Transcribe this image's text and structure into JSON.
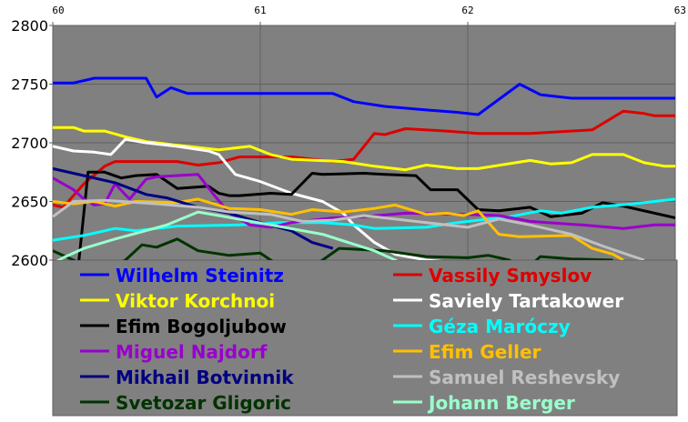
{
  "chart_data": {
    "type": "line",
    "title": "",
    "xlabel": "",
    "ylabel": "",
    "xlim": [
      60,
      63
    ],
    "ylim": [
      2600,
      2800
    ],
    "x_ticks": [
      "60",
      "61",
      "62",
      "63"
    ],
    "y_ticks": [
      "2800",
      "2750",
      "2700",
      "2650",
      "2600"
    ],
    "grid": true,
    "background": "#808080",
    "legend_placement": "bottom",
    "series": [
      {
        "name": "Wilhelm Steinitz",
        "color": "#0000ff",
        "points": [
          [
            60,
            2751
          ],
          [
            60.1,
            2751
          ],
          [
            60.2,
            2755
          ],
          [
            60.45,
            2755
          ],
          [
            60.5,
            2739
          ],
          [
            60.57,
            2747
          ],
          [
            60.65,
            2742
          ],
          [
            61.35,
            2742
          ],
          [
            61.45,
            2735
          ],
          [
            61.6,
            2731
          ],
          [
            61.8,
            2728
          ],
          [
            61.95,
            2726
          ],
          [
            62.05,
            2724
          ],
          [
            62.25,
            2750
          ],
          [
            62.35,
            2741
          ],
          [
            62.5,
            2738
          ],
          [
            63,
            2738
          ]
        ]
      },
      {
        "name": "Vassily Smyslov",
        "color": "#dd0000",
        "points": [
          [
            60,
            2647
          ],
          [
            60.05,
            2645
          ],
          [
            60.15,
            2665
          ],
          [
            60.25,
            2680
          ],
          [
            60.3,
            2684
          ],
          [
            60.6,
            2684
          ],
          [
            60.7,
            2681
          ],
          [
            60.8,
            2683
          ],
          [
            60.9,
            2688
          ],
          [
            61.15,
            2688
          ],
          [
            61.35,
            2684
          ],
          [
            61.45,
            2686
          ],
          [
            61.55,
            2708
          ],
          [
            61.6,
            2707
          ],
          [
            61.7,
            2712
          ],
          [
            61.9,
            2710
          ],
          [
            62.05,
            2708
          ],
          [
            62.3,
            2708
          ],
          [
            62.6,
            2711
          ],
          [
            62.75,
            2727
          ],
          [
            62.85,
            2725
          ],
          [
            62.9,
            2723
          ],
          [
            63,
            2723
          ]
        ]
      },
      {
        "name": "Viktor Korchnoi",
        "color": "#ffff00",
        "points": [
          [
            60,
            2713
          ],
          [
            60.1,
            2713
          ],
          [
            60.15,
            2710
          ],
          [
            60.25,
            2710
          ],
          [
            60.35,
            2705
          ],
          [
            60.45,
            2701
          ],
          [
            60.6,
            2698
          ],
          [
            60.8,
            2694
          ],
          [
            60.95,
            2697
          ],
          [
            61.05,
            2690
          ],
          [
            61.15,
            2686
          ],
          [
            61.4,
            2684
          ],
          [
            61.55,
            2680
          ],
          [
            61.7,
            2677
          ],
          [
            61.8,
            2681
          ],
          [
            61.95,
            2678
          ],
          [
            62.05,
            2678
          ],
          [
            62.3,
            2685
          ],
          [
            62.4,
            2682
          ],
          [
            62.5,
            2683
          ],
          [
            62.6,
            2690
          ],
          [
            62.75,
            2690
          ],
          [
            62.85,
            2683
          ],
          [
            62.95,
            2680
          ],
          [
            63,
            2680
          ]
        ]
      },
      {
        "name": "Saviely Tartakower",
        "color": "#ffffff",
        "points": [
          [
            60,
            2697
          ],
          [
            60.1,
            2693
          ],
          [
            60.2,
            2692
          ],
          [
            60.28,
            2690
          ],
          [
            60.35,
            2703
          ],
          [
            60.45,
            2700
          ],
          [
            60.6,
            2697
          ],
          [
            60.75,
            2693
          ],
          [
            60.8,
            2690
          ],
          [
            60.88,
            2673
          ],
          [
            61,
            2667
          ],
          [
            61.15,
            2657
          ],
          [
            61.3,
            2650
          ],
          [
            61.4,
            2640
          ],
          [
            61.45,
            2630
          ],
          [
            61.55,
            2615
          ],
          [
            61.65,
            2605
          ],
          [
            61.8,
            2600
          ],
          [
            62,
            2597
          ]
        ]
      },
      {
        "name": "Efim Bogoljubow",
        "color": "#000000",
        "points": [
          [
            60.12,
            2590
          ],
          [
            60.17,
            2675
          ],
          [
            60.25,
            2675
          ],
          [
            60.33,
            2670
          ],
          [
            60.4,
            2672
          ],
          [
            60.5,
            2673
          ],
          [
            60.6,
            2661
          ],
          [
            60.75,
            2663
          ],
          [
            60.8,
            2657
          ],
          [
            60.85,
            2655
          ],
          [
            60.9,
            2655
          ],
          [
            61.05,
            2657
          ],
          [
            61.15,
            2656
          ],
          [
            61.25,
            2674
          ],
          [
            61.3,
            2673
          ],
          [
            61.5,
            2674
          ],
          [
            61.6,
            2673
          ],
          [
            61.75,
            2672
          ],
          [
            61.82,
            2660
          ],
          [
            61.95,
            2660
          ],
          [
            62.05,
            2643
          ],
          [
            62.15,
            2642
          ],
          [
            62.3,
            2645
          ],
          [
            62.4,
            2637
          ],
          [
            62.55,
            2640
          ],
          [
            62.65,
            2649
          ],
          [
            62.75,
            2646
          ],
          [
            62.9,
            2640
          ],
          [
            63,
            2636
          ]
        ]
      },
      {
        "name": "Géza Maróczy",
        "color": "#00ffff",
        "points": [
          [
            60,
            2617
          ],
          [
            60.15,
            2621
          ],
          [
            60.3,
            2627
          ],
          [
            60.4,
            2625
          ],
          [
            60.6,
            2629
          ],
          [
            60.9,
            2630
          ],
          [
            61.1,
            2632
          ],
          [
            61.3,
            2632
          ],
          [
            61.45,
            2630
          ],
          [
            61.55,
            2627
          ],
          [
            61.8,
            2628
          ],
          [
            61.95,
            2632
          ],
          [
            62.05,
            2634
          ],
          [
            62.2,
            2637
          ],
          [
            62.35,
            2642
          ],
          [
            62.45,
            2640
          ],
          [
            62.6,
            2645
          ],
          [
            62.8,
            2648
          ],
          [
            63,
            2652
          ]
        ]
      },
      {
        "name": "Miguel Najdorf",
        "color": "#9900cc",
        "points": [
          [
            60,
            2670
          ],
          [
            60.1,
            2660
          ],
          [
            60.15,
            2652
          ],
          [
            60.2,
            2647
          ],
          [
            60.25,
            2648
          ],
          [
            60.3,
            2665
          ],
          [
            60.37,
            2652
          ],
          [
            60.45,
            2669
          ],
          [
            60.5,
            2671
          ],
          [
            60.7,
            2673
          ],
          [
            60.78,
            2655
          ],
          [
            60.85,
            2640
          ],
          [
            60.95,
            2630
          ],
          [
            61.05,
            2628
          ],
          [
            61.15,
            2632
          ],
          [
            61.35,
            2636
          ],
          [
            61.5,
            2637
          ],
          [
            61.7,
            2640
          ],
          [
            62,
            2639
          ],
          [
            62.15,
            2638
          ],
          [
            62.3,
            2633
          ],
          [
            62.55,
            2630
          ],
          [
            62.75,
            2627
          ],
          [
            62.9,
            2630
          ],
          [
            63,
            2630
          ]
        ]
      },
      {
        "name": "Efim Geller",
        "color": "#ffc000",
        "points": [
          [
            60,
            2650
          ],
          [
            60.1,
            2648
          ],
          [
            60.2,
            2650
          ],
          [
            60.3,
            2646
          ],
          [
            60.4,
            2650
          ],
          [
            60.6,
            2649
          ],
          [
            60.7,
            2652
          ],
          [
            60.85,
            2644
          ],
          [
            61,
            2643
          ],
          [
            61.15,
            2639
          ],
          [
            61.25,
            2643
          ],
          [
            61.4,
            2641
          ],
          [
            61.55,
            2644
          ],
          [
            61.65,
            2647
          ],
          [
            61.8,
            2639
          ],
          [
            61.9,
            2640
          ],
          [
            61.98,
            2638
          ],
          [
            62.05,
            2642
          ],
          [
            62.15,
            2622
          ],
          [
            62.25,
            2620
          ],
          [
            62.5,
            2621
          ],
          [
            62.6,
            2610
          ],
          [
            62.7,
            2605
          ],
          [
            62.75,
            2600
          ]
        ]
      },
      {
        "name": "Mikhail Botvinnik",
        "color": "#000080",
        "points": [
          [
            60,
            2678
          ],
          [
            60.15,
            2672
          ],
          [
            60.3,
            2666
          ],
          [
            60.45,
            2656
          ],
          [
            60.55,
            2653
          ],
          [
            60.7,
            2645
          ],
          [
            60.85,
            2640
          ],
          [
            61,
            2632
          ],
          [
            61.15,
            2625
          ],
          [
            61.25,
            2615
          ],
          [
            61.35,
            2610
          ]
        ]
      },
      {
        "name": "Samuel Reshevsky",
        "color": "#c0c0c0",
        "points": [
          [
            60,
            2637
          ],
          [
            60.1,
            2650
          ],
          [
            60.25,
            2651
          ],
          [
            60.5,
            2648
          ],
          [
            60.7,
            2645
          ],
          [
            60.85,
            2641
          ],
          [
            61.05,
            2639
          ],
          [
            61.2,
            2633
          ],
          [
            61.35,
            2634
          ],
          [
            61.5,
            2638
          ],
          [
            61.8,
            2632
          ],
          [
            62,
            2628
          ],
          [
            62.15,
            2635
          ],
          [
            62.3,
            2630
          ],
          [
            62.5,
            2622
          ],
          [
            62.65,
            2612
          ],
          [
            62.75,
            2606
          ],
          [
            62.85,
            2600
          ]
        ]
      },
      {
        "name": "Svetozar Gligoric",
        "color": "#003300",
        "points": [
          [
            60,
            2608
          ],
          [
            60.1,
            2600
          ],
          [
            60.15,
            2595
          ],
          null,
          [
            60.3,
            2595
          ],
          [
            60.35,
            2600
          ],
          [
            60.43,
            2613
          ],
          [
            60.5,
            2611
          ],
          [
            60.6,
            2618
          ],
          [
            60.7,
            2608
          ],
          [
            60.85,
            2604
          ],
          [
            61,
            2606
          ],
          [
            61.05,
            2600
          ],
          [
            61.1,
            2595
          ],
          null,
          [
            61.25,
            2595
          ],
          [
            61.3,
            2600
          ],
          [
            61.38,
            2610
          ],
          [
            61.6,
            2608
          ],
          [
            61.8,
            2603
          ],
          [
            62,
            2602
          ],
          [
            62.1,
            2604
          ],
          [
            62.2,
            2600
          ],
          [
            62.25,
            2595
          ],
          null,
          [
            62.3,
            2595
          ],
          [
            62.35,
            2603
          ],
          [
            62.5,
            2601
          ],
          [
            62.7,
            2600
          ]
        ]
      },
      {
        "name": "Johann Berger",
        "color": "#99ffcc",
        "points": [
          [
            60,
            2597
          ],
          [
            60.05,
            2602
          ],
          [
            60.15,
            2610
          ],
          [
            60.3,
            2618
          ],
          [
            60.55,
            2630
          ],
          [
            60.7,
            2641
          ],
          [
            60.8,
            2638
          ],
          [
            61.05,
            2630
          ],
          [
            61.3,
            2622
          ],
          [
            61.55,
            2608
          ],
          [
            61.65,
            2600
          ],
          [
            61.7,
            2595
          ]
        ]
      }
    ]
  }
}
